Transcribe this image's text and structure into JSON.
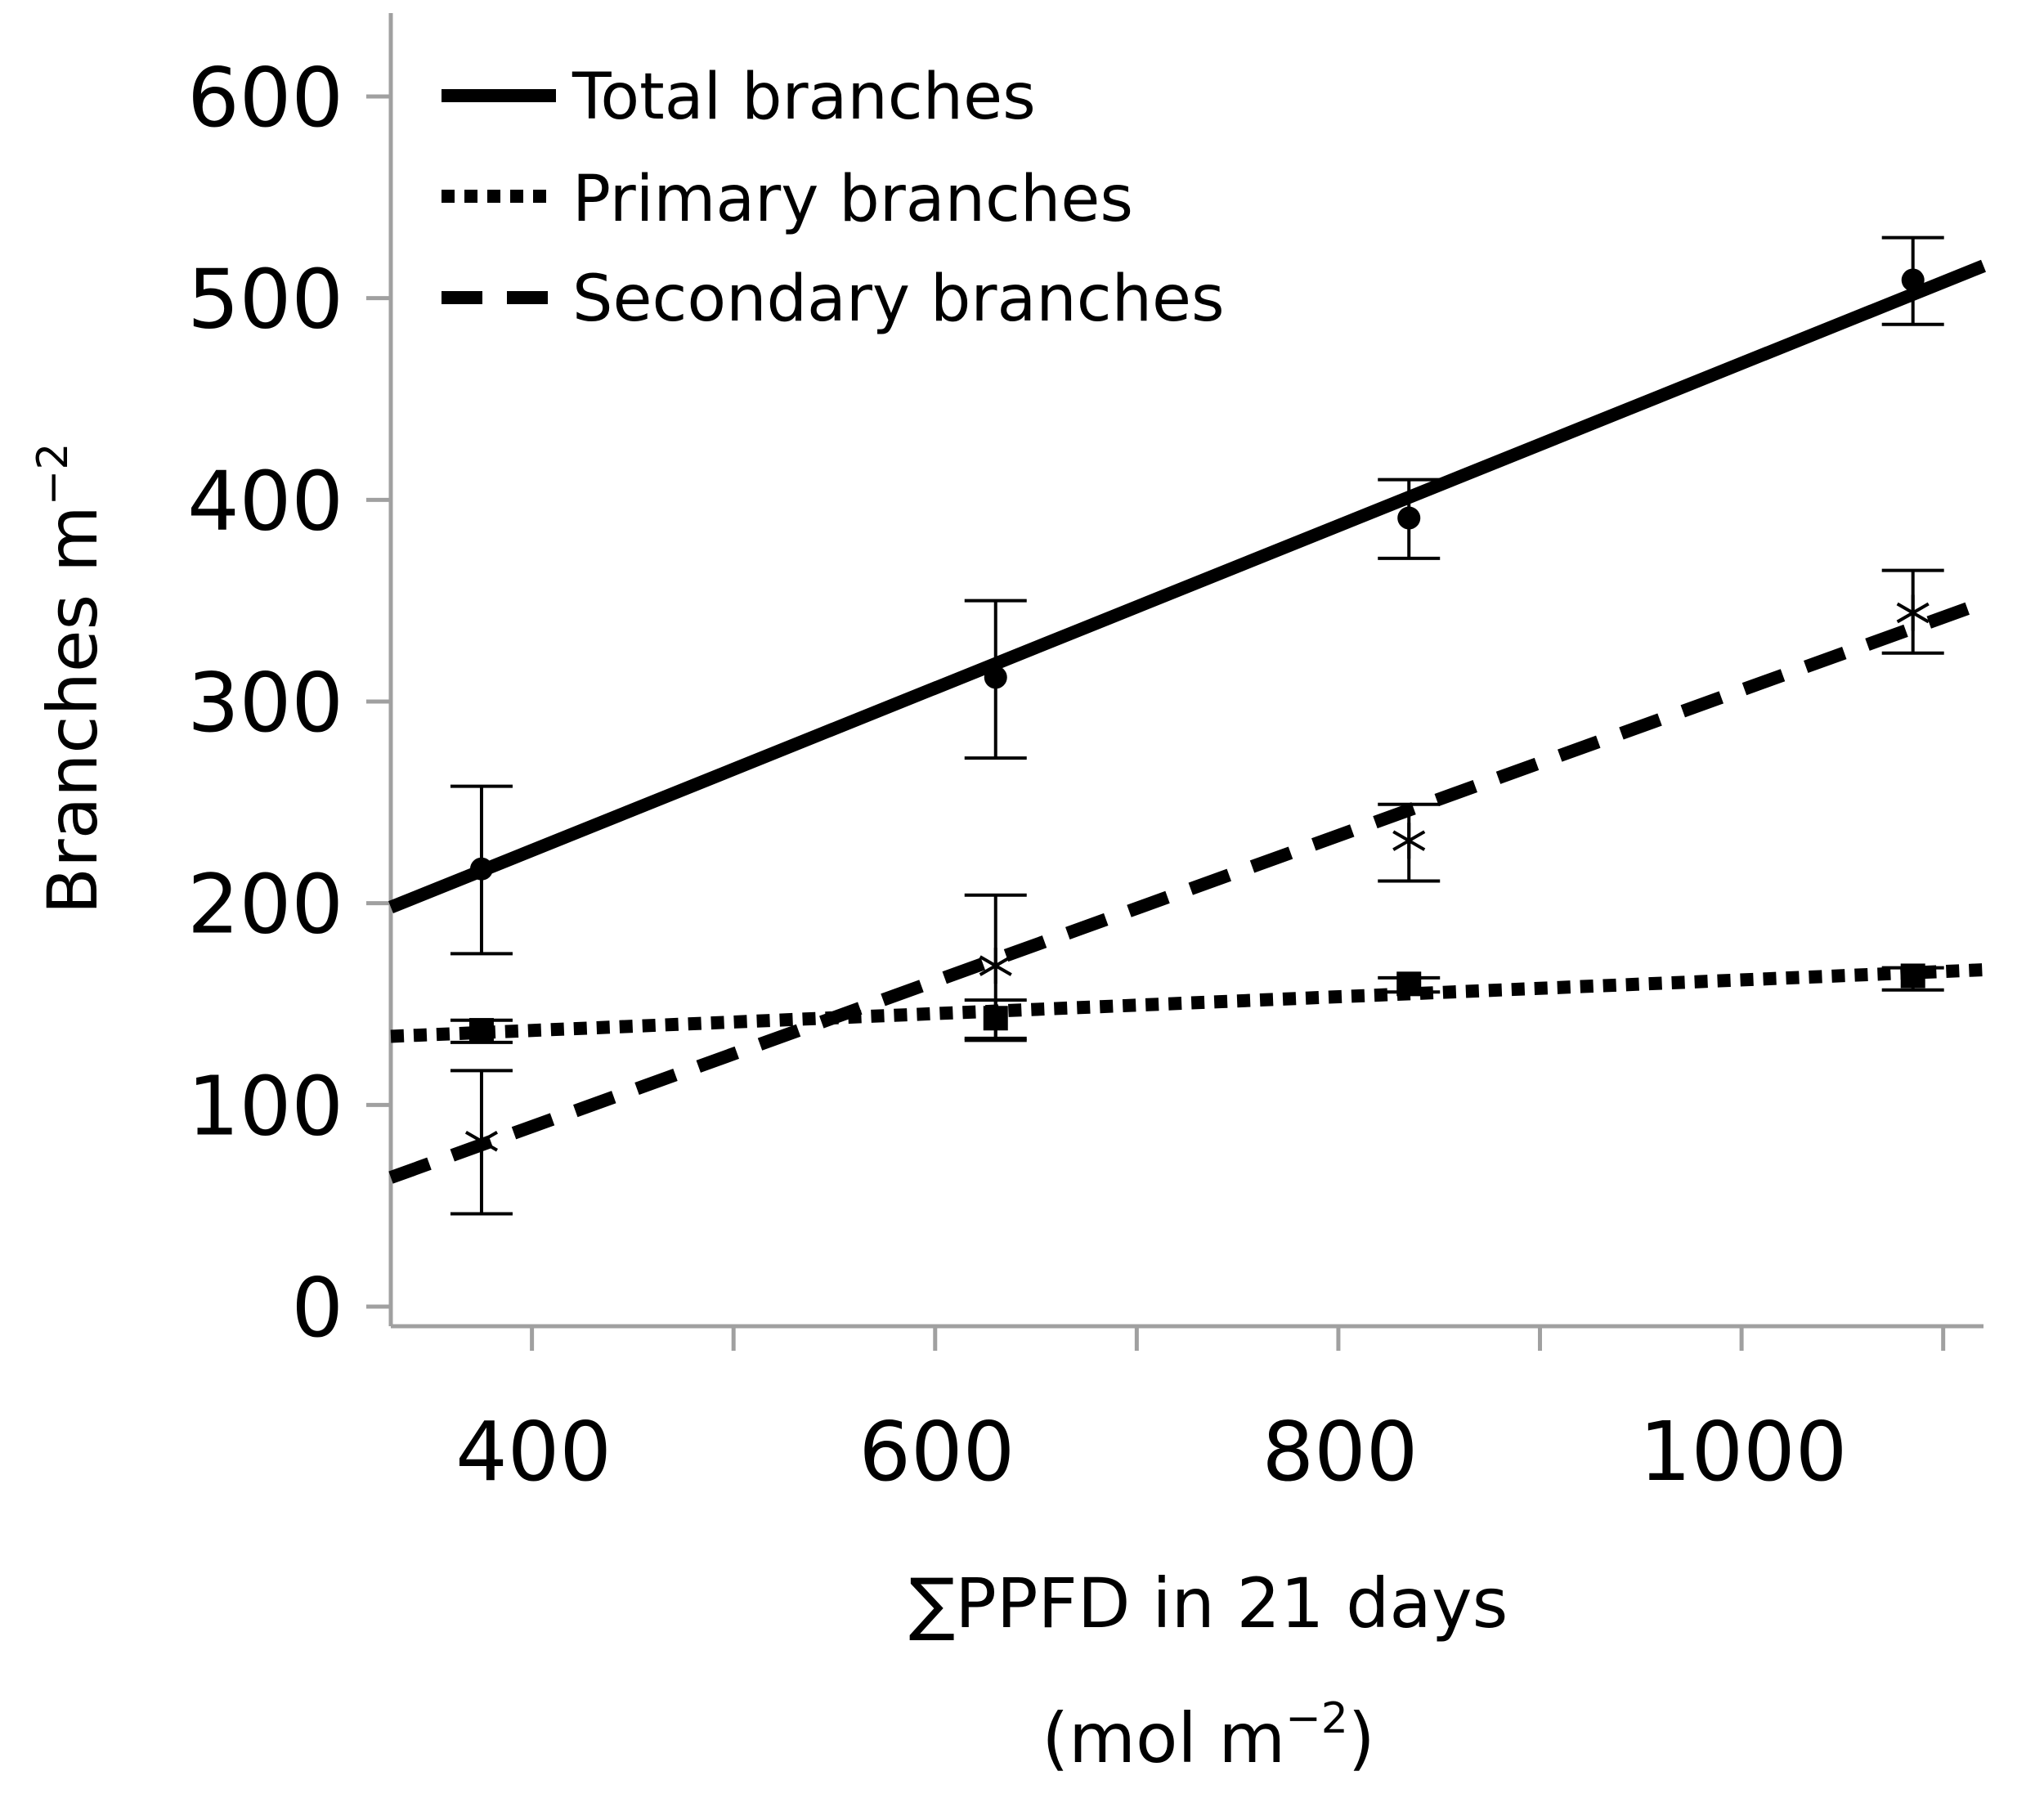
{
  "chart_data": {
    "type": "scatter",
    "xlabel": "∑PPFD in 21 days",
    "xlabel_units": "(mol m",
    "xlabel_units_sup": "−2",
    "xlabel_units_close": ")",
    "ylabel": "Branches m",
    "ylabel_sup": "−2",
    "xlim": [
      330,
      1120
    ],
    "ylim": [
      0,
      650
    ],
    "x_ticks": [
      400,
      600,
      800,
      1000
    ],
    "x_tick_labels": [
      "400",
      "600",
      "800",
      "1000"
    ],
    "x_minor_ticks": [
      500,
      700,
      900,
      1100
    ],
    "y_ticks": [
      0,
      100,
      200,
      300,
      400,
      500,
      600
    ],
    "y_tick_labels": [
      "0",
      "100",
      "200",
      "300",
      "400",
      "500",
      "600"
    ],
    "grid": false,
    "legend_position": "top-left",
    "series": [
      {
        "name": "Total branches",
        "marker": "circle",
        "line_style": "solid",
        "x": [
          375,
          630,
          835,
          1085
        ],
        "y": [
          217,
          312,
          391,
          509
        ],
        "err_low": [
          175,
          272,
          371,
          487
        ],
        "err_high": [
          258,
          350,
          410,
          530
        ],
        "fit_x": [
          330,
          1120
        ],
        "fit_y": [
          198,
          516
        ]
      },
      {
        "name": "Primary branches",
        "marker": "square",
        "line_style": "dotted",
        "x": [
          375,
          630,
          835,
          1085
        ],
        "y": [
          137,
          143,
          160,
          164
        ],
        "err_low": [
          131,
          133,
          156,
          157
        ],
        "err_high": [
          142,
          152,
          163,
          168
        ],
        "fit_x": [
          330,
          1120
        ],
        "fit_y": [
          134,
          167
        ]
      },
      {
        "name": "Secondary branches",
        "marker": "asterisk",
        "line_style": "dashed",
        "x": [
          375,
          630,
          835,
          1085
        ],
        "y": [
          82,
          169,
          231,
          344
        ],
        "err_low": [
          46,
          132,
          211,
          324
        ],
        "err_high": [
          117,
          204,
          249,
          365
        ],
        "fit_x": [
          330,
          1120
        ],
        "fit_y": [
          64,
          349
        ]
      }
    ]
  }
}
